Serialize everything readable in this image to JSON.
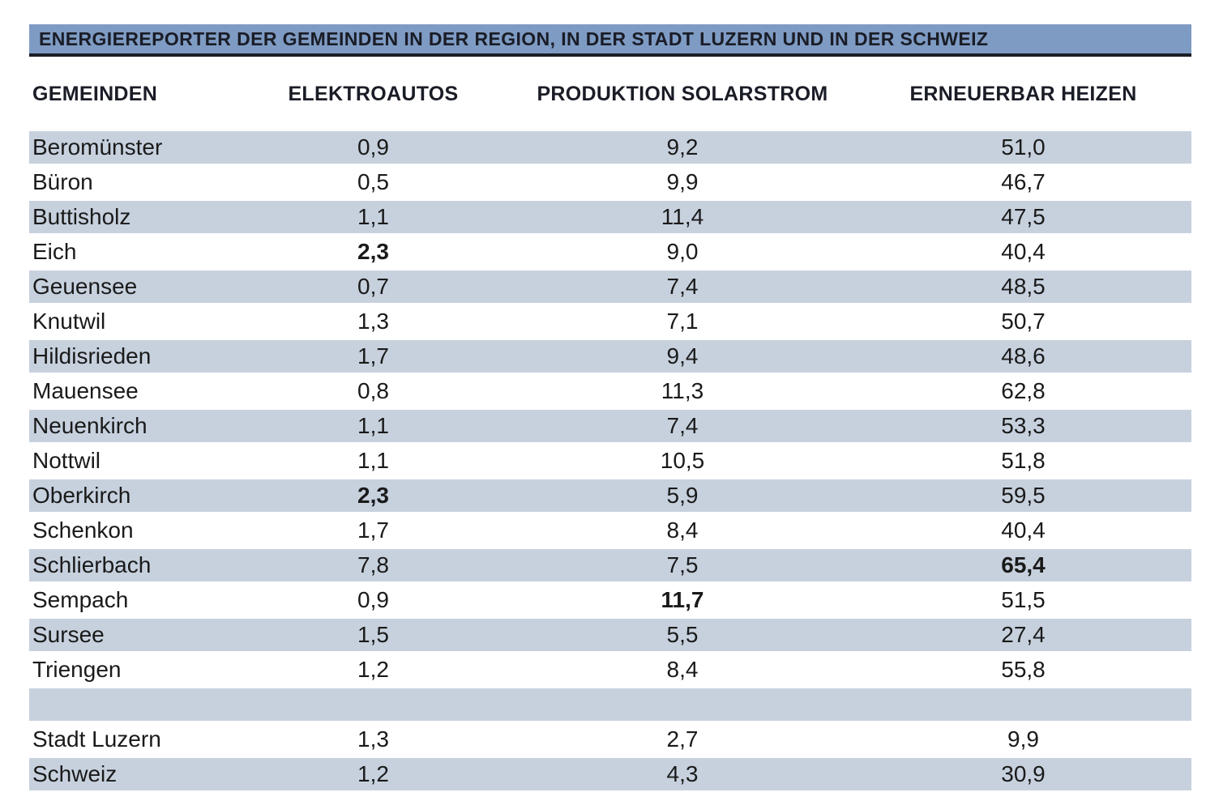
{
  "title": "ENERGIEREPORTER DER GEMEINDEN IN DER REGION, IN DER STADT LUZERN UND IN DER SCHWEIZ",
  "columns": [
    "GEMEINDEN",
    "ELEKTROAUTOS",
    "PRODUKTION SOLARSTROM",
    "ERNEUERBAR HEIZEN"
  ],
  "colors": {
    "title_bar": "#7E9BC3",
    "title_underline": "#1A1C26",
    "row_stripe": "#C7D1DE",
    "text": "#1A1A1A"
  },
  "rows": [
    {
      "gemeinde": "Beromünster",
      "values": [
        "0,9",
        "9,2",
        "51,0"
      ],
      "bold": [
        false,
        false,
        false
      ]
    },
    {
      "gemeinde": "Büron",
      "values": [
        "0,5",
        "9,9",
        "46,7"
      ],
      "bold": [
        false,
        false,
        false
      ]
    },
    {
      "gemeinde": "Buttisholz",
      "values": [
        "1,1",
        "11,4",
        "47,5"
      ],
      "bold": [
        false,
        false,
        false
      ]
    },
    {
      "gemeinde": "Eich",
      "values": [
        "2,3",
        "9,0",
        "40,4"
      ],
      "bold": [
        true,
        false,
        false
      ]
    },
    {
      "gemeinde": "Geuensee",
      "values": [
        "0,7",
        "7,4",
        "48,5"
      ],
      "bold": [
        false,
        false,
        false
      ]
    },
    {
      "gemeinde": "Knutwil",
      "values": [
        "1,3",
        "7,1",
        "50,7"
      ],
      "bold": [
        false,
        false,
        false
      ]
    },
    {
      "gemeinde": "Hildisrieden",
      "values": [
        "1,7",
        "9,4",
        "48,6"
      ],
      "bold": [
        false,
        false,
        false
      ]
    },
    {
      "gemeinde": "Mauensee",
      "values": [
        "0,8",
        "11,3",
        "62,8"
      ],
      "bold": [
        false,
        false,
        false
      ]
    },
    {
      "gemeinde": "Neuenkirch",
      "values": [
        "1,1",
        "7,4",
        "53,3"
      ],
      "bold": [
        false,
        false,
        false
      ]
    },
    {
      "gemeinde": "Nottwil",
      "values": [
        "1,1",
        "10,5",
        "51,8"
      ],
      "bold": [
        false,
        false,
        false
      ]
    },
    {
      "gemeinde": "Oberkirch",
      "values": [
        "2,3",
        "5,9",
        "59,5"
      ],
      "bold": [
        true,
        false,
        false
      ]
    },
    {
      "gemeinde": "Schenkon",
      "values": [
        "1,7",
        "8,4",
        "40,4"
      ],
      "bold": [
        false,
        false,
        false
      ]
    },
    {
      "gemeinde": "Schlierbach",
      "values": [
        "7,8",
        "7,5",
        "65,4"
      ],
      "bold": [
        false,
        false,
        true
      ]
    },
    {
      "gemeinde": "Sempach",
      "values": [
        "0,9",
        "11,7",
        "51,5"
      ],
      "bold": [
        false,
        true,
        false
      ]
    },
    {
      "gemeinde": "Sursee",
      "values": [
        "1,5",
        "5,5",
        "27,4"
      ],
      "bold": [
        false,
        false,
        false
      ]
    },
    {
      "gemeinde": "Triengen",
      "values": [
        "1,2",
        "8,4",
        "55,8"
      ],
      "bold": [
        false,
        false,
        false
      ]
    },
    {
      "spacer": true
    },
    {
      "gemeinde": "Stadt Luzern",
      "values": [
        "1,3",
        "2,7",
        "9,9"
      ],
      "bold": [
        false,
        false,
        false
      ]
    },
    {
      "gemeinde": "Schweiz",
      "values": [
        "1,2",
        "4,3",
        "30,9"
      ],
      "bold": [
        false,
        false,
        false
      ]
    }
  ],
  "chart_data": {
    "type": "table",
    "title": "ENERGIEREPORTER DER GEMEINDEN IN DER REGION, IN DER STADT LUZERN UND IN DER SCHWEIZ",
    "columns": [
      "GEMEINDEN",
      "ELEKTROAUTOS",
      "PRODUKTION SOLARSTROM",
      "ERNEUERBAR HEIZEN"
    ],
    "rows": [
      [
        "Beromünster",
        0.9,
        9.2,
        51.0
      ],
      [
        "Büron",
        0.5,
        9.9,
        46.7
      ],
      [
        "Buttisholz",
        1.1,
        11.4,
        47.5
      ],
      [
        "Eich",
        2.3,
        9.0,
        40.4
      ],
      [
        "Geuensee",
        0.7,
        7.4,
        48.5
      ],
      [
        "Knutwil",
        1.3,
        7.1,
        50.7
      ],
      [
        "Hildisrieden",
        1.7,
        9.4,
        48.6
      ],
      [
        "Mauensee",
        0.8,
        11.3,
        62.8
      ],
      [
        "Neuenkirch",
        1.1,
        7.4,
        53.3
      ],
      [
        "Nottwil",
        1.1,
        10.5,
        51.8
      ],
      [
        "Oberkirch",
        2.3,
        5.9,
        59.5
      ],
      [
        "Schenkon",
        1.7,
        8.4,
        40.4
      ],
      [
        "Schlierbach",
        7.8,
        7.5,
        65.4
      ],
      [
        "Sempach",
        0.9,
        11.7,
        51.5
      ],
      [
        "Sursee",
        1.5,
        5.5,
        27.4
      ],
      [
        "Triengen",
        1.2,
        8.4,
        55.8
      ],
      [
        "Stadt Luzern",
        1.3,
        2.7,
        9.9
      ],
      [
        "Schweiz",
        1.2,
        4.3,
        30.9
      ]
    ],
    "bold_cells": [
      [
        "Eich",
        "ELEKTROAUTOS"
      ],
      [
        "Oberkirch",
        "ELEKTROAUTOS"
      ],
      [
        "Schlierbach",
        "ERNEUERBAR HEIZEN"
      ],
      [
        "Sempach",
        "PRODUKTION SOLARSTROM"
      ]
    ],
    "number_format": "decimal-comma",
    "notes": "striped rows alternate light blue / white; empty spacer row separates region municipalities from Stadt Luzern and Schweiz"
  }
}
